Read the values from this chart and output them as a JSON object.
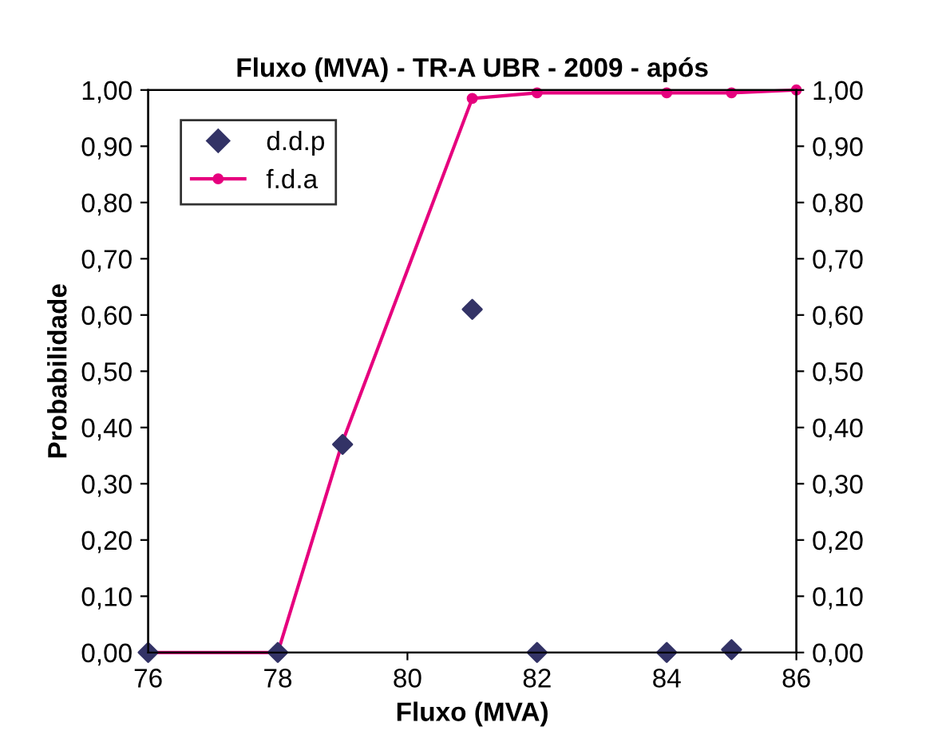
{
  "chart_data": {
    "type": "line",
    "title": "Fluxo (MVA) - TR-A UBR - 2009 - após",
    "xlabel": "Fluxo (MVA)",
    "ylabel": "Probabilidade",
    "xlim": [
      76,
      86
    ],
    "xticks": [
      76,
      78,
      80,
      82,
      84,
      86
    ],
    "ylim": [
      0,
      1
    ],
    "yticks": [
      {
        "value": 0,
        "label": "0,00"
      },
      {
        "value": 0.1,
        "label": "0,10"
      },
      {
        "value": 0.2,
        "label": "0,20"
      },
      {
        "value": 0.3,
        "label": "0,30"
      },
      {
        "value": 0.4,
        "label": "0,40"
      },
      {
        "value": 0.5,
        "label": "0,50"
      },
      {
        "value": 0.6,
        "label": "0,60"
      },
      {
        "value": 0.7,
        "label": "0,70"
      },
      {
        "value": 0.8,
        "label": "0,80"
      },
      {
        "value": 0.9,
        "label": "0,90"
      },
      {
        "value": 1,
        "label": "1,00"
      }
    ],
    "y2lim": [
      0,
      1
    ],
    "y2ticks": [
      {
        "value": 0,
        "label": "0,00"
      },
      {
        "value": 0.1,
        "label": "0,10"
      },
      {
        "value": 0.2,
        "label": "0,20"
      },
      {
        "value": 0.3,
        "label": "0,30"
      },
      {
        "value": 0.4,
        "label": "0,40"
      },
      {
        "value": 0.5,
        "label": "0,50"
      },
      {
        "value": 0.6,
        "label": "0,60"
      },
      {
        "value": 0.7,
        "label": "0,70"
      },
      {
        "value": 0.8,
        "label": "0,80"
      },
      {
        "value": 0.9,
        "label": "0,90"
      },
      {
        "value": 1,
        "label": "1,00"
      }
    ],
    "grid": false,
    "legend": "top left",
    "series": [
      {
        "name": "d.d.p",
        "type": "scatter",
        "marker": "diamond",
        "color": "#333366",
        "x": [
          76,
          78,
          79,
          81,
          82,
          84,
          85
        ],
        "values": [
          0,
          0,
          0.37,
          0.61,
          0,
          0,
          0.005
        ]
      },
      {
        "name": "f.d.a",
        "marker": "circle",
        "line_style": "solid",
        "color": "#e6007e",
        "x": [
          76,
          78,
          79,
          81,
          82,
          84,
          85,
          86
        ],
        "values": [
          0,
          0,
          0.375,
          0.985,
          0.995,
          0.995,
          0.995,
          1.0
        ]
      }
    ]
  }
}
